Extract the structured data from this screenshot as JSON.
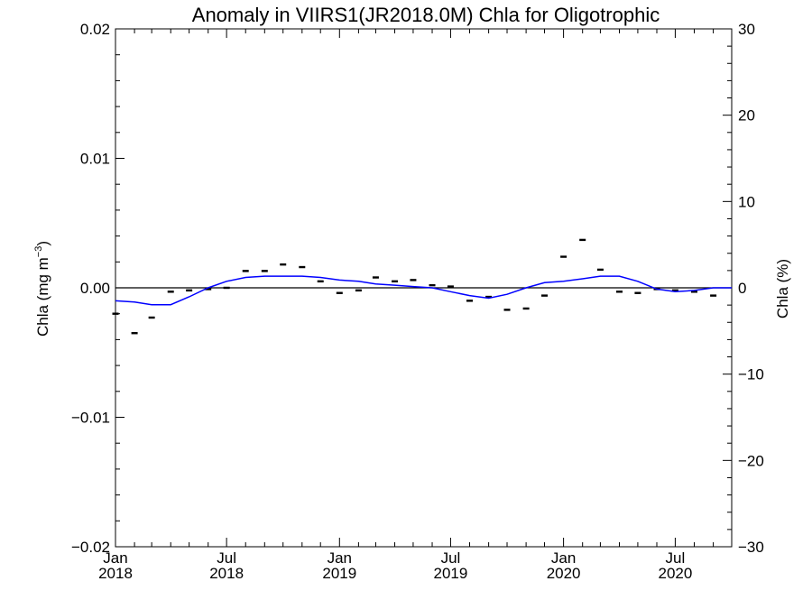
{
  "chart_data": {
    "type": "line",
    "title": "Anomaly in VIIRS1(JR2018.0M) Chla for Oligotrophic",
    "ylabel_left": "Chla (mg m",
    "ylabel_left_sup": "−3",
    "ylabel_left_close": ")",
    "ylabel_right": "Chla (%)",
    "xlim": [
      "2018-01-01",
      "2020-10-01"
    ],
    "ylim_left": [
      -0.02,
      0.02
    ],
    "ylim_right": [
      -30,
      30
    ],
    "x_ticks": [
      {
        "date": "2018-01-01",
        "month": "Jan",
        "year": "2018"
      },
      {
        "date": "2018-07-01",
        "month": "Jul",
        "year": "2018"
      },
      {
        "date": "2019-01-01",
        "month": "Jan",
        "year": "2019"
      },
      {
        "date": "2019-07-01",
        "month": "Jul",
        "year": "2019"
      },
      {
        "date": "2020-01-01",
        "month": "Jan",
        "year": "2020"
      },
      {
        "date": "2020-07-01",
        "month": "Jul",
        "year": "2020"
      }
    ],
    "y_ticks_left": [
      {
        "value": 0.02,
        "label": "0.02"
      },
      {
        "value": 0.01,
        "label": "0.01"
      },
      {
        "value": 0.0,
        "label": "0.00"
      },
      {
        "value": -0.01,
        "label": "−0.01"
      },
      {
        "value": -0.02,
        "label": "−0.02"
      }
    ],
    "y_ticks_right": [
      {
        "value": 30,
        "label": "30"
      },
      {
        "value": 20,
        "label": "20"
      },
      {
        "value": 10,
        "label": "10"
      },
      {
        "value": 0,
        "label": "0"
      },
      {
        "value": -10,
        "label": "−10"
      },
      {
        "value": -20,
        "label": "−20"
      },
      {
        "value": -30,
        "label": "−30"
      }
    ],
    "zero_line": true,
    "grid": false,
    "series": [
      {
        "style": "markers",
        "color": "#000000",
        "points": [
          {
            "x": "2018-01-01",
            "y": -0.002
          },
          {
            "x": "2018-02-01",
            "y": -0.0035
          },
          {
            "x": "2018-03-01",
            "y": -0.0023
          },
          {
            "x": "2018-04-01",
            "y": -0.0003
          },
          {
            "x": "2018-05-01",
            "y": -0.0002
          },
          {
            "x": "2018-06-01",
            "y": -0.0001
          },
          {
            "x": "2018-07-01",
            "y": 0.0
          },
          {
            "x": "2018-08-01",
            "y": 0.0013
          },
          {
            "x": "2018-09-01",
            "y": 0.0013
          },
          {
            "x": "2018-10-01",
            "y": 0.0018
          },
          {
            "x": "2018-11-01",
            "y": 0.0016
          },
          {
            "x": "2018-12-01",
            "y": 0.0005
          },
          {
            "x": "2019-01-01",
            "y": -0.0004
          },
          {
            "x": "2019-02-01",
            "y": -0.0002
          },
          {
            "x": "2019-03-01",
            "y": 0.0008
          },
          {
            "x": "2019-04-01",
            "y": 0.0005
          },
          {
            "x": "2019-05-01",
            "y": 0.0006
          },
          {
            "x": "2019-06-01",
            "y": 0.0002
          },
          {
            "x": "2019-07-01",
            "y": 0.0001
          },
          {
            "x": "2019-08-01",
            "y": -0.001
          },
          {
            "x": "2019-09-01",
            "y": -0.0007
          },
          {
            "x": "2019-10-01",
            "y": -0.0017
          },
          {
            "x": "2019-11-01",
            "y": -0.0016
          },
          {
            "x": "2019-12-01",
            "y": -0.0006
          },
          {
            "x": "2020-01-01",
            "y": 0.0024
          },
          {
            "x": "2020-02-01",
            "y": 0.0037
          },
          {
            "x": "2020-03-01",
            "y": 0.0014
          },
          {
            "x": "2020-04-01",
            "y": -0.0003
          },
          {
            "x": "2020-05-01",
            "y": -0.0004
          },
          {
            "x": "2020-06-01",
            "y": -0.0001
          },
          {
            "x": "2020-07-01",
            "y": -0.0002
          },
          {
            "x": "2020-08-01",
            "y": -0.0003
          },
          {
            "x": "2020-09-01",
            "y": -0.0006
          }
        ]
      },
      {
        "style": "line",
        "color": "#0000ff",
        "points": [
          {
            "x": "2018-01-01",
            "y": -0.001
          },
          {
            "x": "2018-02-01",
            "y": -0.0011
          },
          {
            "x": "2018-03-01",
            "y": -0.0013
          },
          {
            "x": "2018-04-01",
            "y": -0.0013
          },
          {
            "x": "2018-05-01",
            "y": -0.0007
          },
          {
            "x": "2018-06-01",
            "y": 0.0
          },
          {
            "x": "2018-07-01",
            "y": 0.0005
          },
          {
            "x": "2018-08-01",
            "y": 0.0008
          },
          {
            "x": "2018-09-01",
            "y": 0.0009
          },
          {
            "x": "2018-10-01",
            "y": 0.0009
          },
          {
            "x": "2018-11-01",
            "y": 0.0009
          },
          {
            "x": "2018-12-01",
            "y": 0.0008
          },
          {
            "x": "2019-01-01",
            "y": 0.0006
          },
          {
            "x": "2019-02-01",
            "y": 0.0005
          },
          {
            "x": "2019-03-01",
            "y": 0.0003
          },
          {
            "x": "2019-04-01",
            "y": 0.0002
          },
          {
            "x": "2019-05-01",
            "y": 0.0001
          },
          {
            "x": "2019-06-01",
            "y": 0.0
          },
          {
            "x": "2019-07-01",
            "y": -0.0003
          },
          {
            "x": "2019-08-01",
            "y": -0.0006
          },
          {
            "x": "2019-09-01",
            "y": -0.0008
          },
          {
            "x": "2019-10-01",
            "y": -0.0005
          },
          {
            "x": "2019-11-01",
            "y": 0.0
          },
          {
            "x": "2019-12-01",
            "y": 0.0004
          },
          {
            "x": "2020-01-01",
            "y": 0.0005
          },
          {
            "x": "2020-02-01",
            "y": 0.0007
          },
          {
            "x": "2020-03-01",
            "y": 0.0009
          },
          {
            "x": "2020-04-01",
            "y": 0.0009
          },
          {
            "x": "2020-05-01",
            "y": 0.0005
          },
          {
            "x": "2020-06-01",
            "y": -0.0001
          },
          {
            "x": "2020-07-01",
            "y": -0.0003
          },
          {
            "x": "2020-08-01",
            "y": -0.0002
          },
          {
            "x": "2020-09-01",
            "y": 0.0
          },
          {
            "x": "2020-10-01",
            "y": 0.0
          }
        ]
      }
    ]
  }
}
